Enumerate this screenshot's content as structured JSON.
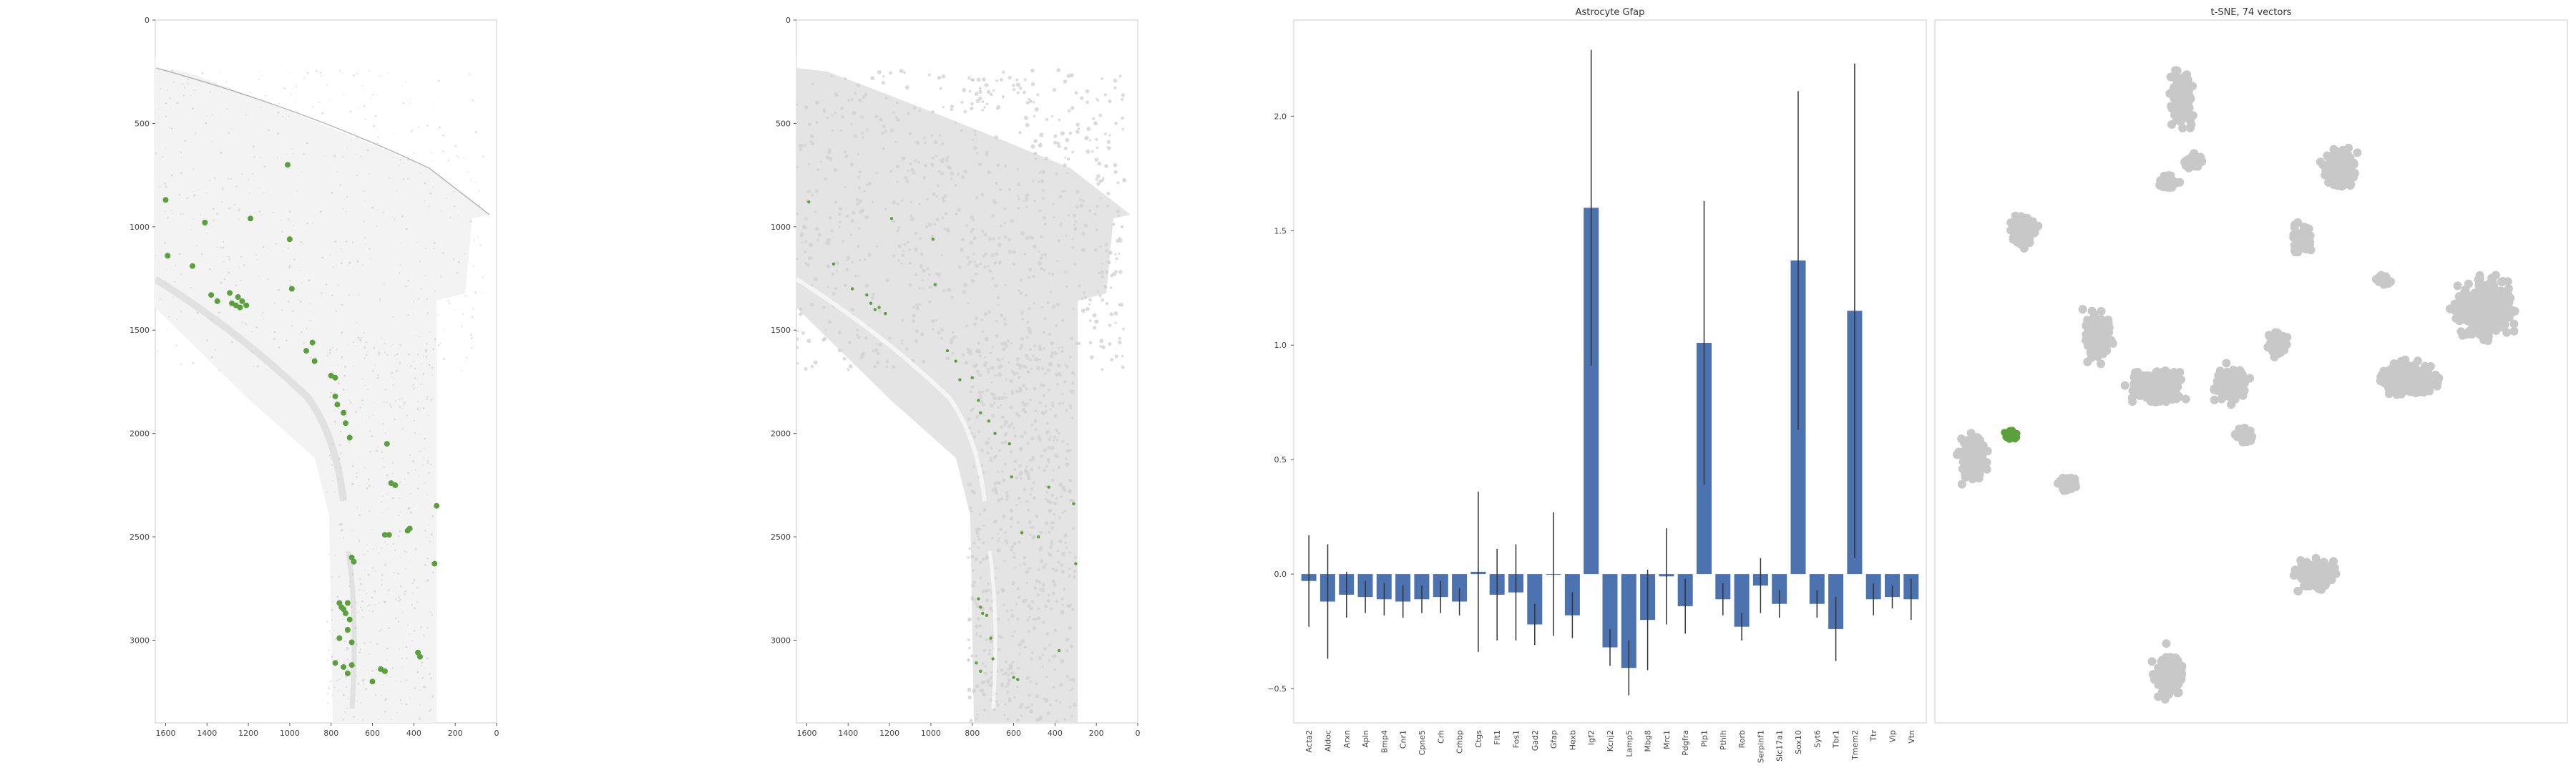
{
  "colors": {
    "bar": "#4c72b0",
    "highlight": "#5aa13d",
    "cloud": "#c8c8c8",
    "tissue": "#e2e2e2",
    "errorbar": "#333333",
    "axis": "#cccccc"
  },
  "chart_data": [
    {
      "type": "scatter",
      "title": "",
      "xlim": [
        1650,
        0
      ],
      "ylim": [
        3400,
        0
      ],
      "xticks": [
        1600,
        1400,
        1200,
        1000,
        800,
        600,
        400,
        200,
        0
      ],
      "yticks": [
        0,
        500,
        1000,
        1500,
        2000,
        2500,
        3000
      ],
      "background": "grayscale tissue image",
      "highlight_points": [
        [
          1600,
          870
        ],
        [
          1590,
          1140
        ],
        [
          1470,
          1190
        ],
        [
          1410,
          980
        ],
        [
          1380,
          1330
        ],
        [
          1350,
          1360
        ],
        [
          1290,
          1320
        ],
        [
          1280,
          1370
        ],
        [
          1260,
          1380
        ],
        [
          1250,
          1340
        ],
        [
          1240,
          1390
        ],
        [
          1230,
          1360
        ],
        [
          1210,
          1380
        ],
        [
          1190,
          960
        ],
        [
          1010,
          700
        ],
        [
          1000,
          1060
        ],
        [
          990,
          1300
        ],
        [
          920,
          1600
        ],
        [
          890,
          1560
        ],
        [
          880,
          1650
        ],
        [
          800,
          1720
        ],
        [
          780,
          1730
        ],
        [
          780,
          1820
        ],
        [
          770,
          1860
        ],
        [
          740,
          1900
        ],
        [
          730,
          1950
        ],
        [
          710,
          2020
        ],
        [
          530,
          2050
        ],
        [
          700,
          2600
        ],
        [
          690,
          2620
        ],
        [
          540,
          2490
        ],
        [
          520,
          2490
        ],
        [
          510,
          2240
        ],
        [
          490,
          2250
        ],
        [
          430,
          2470
        ],
        [
          420,
          2460
        ],
        [
          290,
          2350
        ],
        [
          300,
          2630
        ],
        [
          760,
          2820
        ],
        [
          750,
          2840
        ],
        [
          740,
          2850
        ],
        [
          730,
          2870
        ],
        [
          720,
          2820
        ],
        [
          710,
          2900
        ],
        [
          720,
          2950
        ],
        [
          760,
          2990
        ],
        [
          700,
          3010
        ],
        [
          780,
          3110
        ],
        [
          740,
          3130
        ],
        [
          720,
          3160
        ],
        [
          700,
          3120
        ],
        [
          600,
          3200
        ],
        [
          560,
          3140
        ],
        [
          540,
          3150
        ],
        [
          380,
          3060
        ],
        [
          370,
          3080
        ]
      ]
    },
    {
      "type": "scatter",
      "title": "",
      "xlim": [
        1650,
        0
      ],
      "ylim": [
        3400,
        0
      ],
      "xticks": [
        1600,
        1400,
        1200,
        1000,
        800,
        600,
        400,
        200,
        0
      ],
      "yticks": [
        0,
        500,
        1000,
        1500,
        2000,
        2500,
        3000
      ],
      "background": "segmented cell masks",
      "highlight_points": [
        [
          1590,
          880
        ],
        [
          1470,
          1180
        ],
        [
          1380,
          1300
        ],
        [
          1310,
          1330
        ],
        [
          1290,
          1370
        ],
        [
          1270,
          1400
        ],
        [
          1250,
          1390
        ],
        [
          1220,
          1420
        ],
        [
          1190,
          960
        ],
        [
          990,
          1060
        ],
        [
          980,
          1280
        ],
        [
          920,
          1600
        ],
        [
          880,
          1650
        ],
        [
          860,
          1740
        ],
        [
          800,
          1730
        ],
        [
          770,
          1840
        ],
        [
          760,
          1900
        ],
        [
          720,
          1940
        ],
        [
          690,
          2000
        ],
        [
          620,
          2050
        ],
        [
          610,
          2210
        ],
        [
          560,
          2480
        ],
        [
          480,
          2500
        ],
        [
          430,
          2260
        ],
        [
          310,
          2340
        ],
        [
          300,
          2630
        ],
        [
          770,
          2800
        ],
        [
          760,
          2840
        ],
        [
          750,
          2870
        ],
        [
          730,
          2880
        ],
        [
          710,
          2990
        ],
        [
          780,
          3110
        ],
        [
          760,
          3150
        ],
        [
          700,
          3090
        ],
        [
          600,
          3180
        ],
        [
          580,
          3190
        ],
        [
          380,
          3050
        ]
      ]
    },
    {
      "type": "bar",
      "title": "Astrocyte Gfap",
      "xlabel": "",
      "ylabel": "",
      "ylim": [
        -0.65,
        2.42
      ],
      "yticks": [
        -0.5,
        0.0,
        0.5,
        1.0,
        1.5,
        2.0
      ],
      "ytick_labels": [
        "−0.5",
        "0.0",
        "0.5",
        "1.0",
        "1.5",
        "2.0"
      ],
      "categories": [
        "Acta2",
        "Aldoc",
        "Arxn",
        "Apln",
        "Bmp4",
        "Cnr1",
        "Cpne5",
        "Crh",
        "Crhbp",
        "Ctgs",
        "Flt1",
        "Fos1",
        "Gad2",
        "Gfap",
        "Hexb",
        "Igf2",
        "Kcnj2",
        "Lamp5",
        "Mbg8",
        "Mrc1",
        "Pdgfra",
        "Plp1",
        "Pthlh",
        "Rorb",
        "Serpinf1",
        "Slc17a1",
        "Sox10",
        "Syt6",
        "Tbr1",
        "Tmem2",
        "Ttr",
        "Vip",
        "Vtn"
      ],
      "values": [
        -0.03,
        -0.12,
        -0.09,
        -0.1,
        -0.11,
        -0.12,
        -0.11,
        -0.1,
        -0.12,
        0.01,
        -0.09,
        -0.08,
        -0.22,
        0.0,
        -0.18,
        1.6,
        -0.32,
        -0.41,
        -0.2,
        -0.01,
        -0.14,
        1.01,
        -0.11,
        -0.23,
        -0.05,
        -0.13,
        1.37,
        -0.13,
        -0.24,
        1.15,
        -0.11,
        -0.1,
        -0.11
      ],
      "errors": [
        0.2,
        0.25,
        0.1,
        0.07,
        0.07,
        0.07,
        0.06,
        0.07,
        0.06,
        0.35,
        0.2,
        0.21,
        0.09,
        0.27,
        0.1,
        0.69,
        0.08,
        0.12,
        0.22,
        0.21,
        0.12,
        0.62,
        0.07,
        0.06,
        0.12,
        0.06,
        0.74,
        0.06,
        0.14,
        1.08,
        0.07,
        0.05,
        0.09
      ]
    },
    {
      "type": "scatter",
      "title": "t-SNE, 74 vectors",
      "xlim": [
        0,
        100
      ],
      "ylim": [
        0,
        100
      ],
      "axes": "none",
      "clusters": [
        {
          "cx": 39,
          "cy": 89,
          "rx": 2.7,
          "ry": 5.6,
          "n": 160
        },
        {
          "cx": 41,
          "cy": 80,
          "rx": 2.2,
          "ry": 1.5,
          "n": 70
        },
        {
          "cx": 37,
          "cy": 77,
          "rx": 2.4,
          "ry": 1.5,
          "n": 50
        },
        {
          "cx": 64,
          "cy": 79,
          "rx": 4.0,
          "ry": 4.5,
          "n": 180
        },
        {
          "cx": 14,
          "cy": 70,
          "rx": 3.2,
          "ry": 3.3,
          "n": 100
        },
        {
          "cx": 58,
          "cy": 69,
          "rx": 2.5,
          "ry": 3.0,
          "n": 80
        },
        {
          "cx": 71,
          "cy": 63,
          "rx": 1.8,
          "ry": 1.2,
          "n": 30
        },
        {
          "cx": 87,
          "cy": 59,
          "rx": 6.5,
          "ry": 6.0,
          "n": 420
        },
        {
          "cx": 75,
          "cy": 49,
          "rx": 6.5,
          "ry": 3.5,
          "n": 280
        },
        {
          "cx": 26,
          "cy": 55,
          "rx": 3.5,
          "ry": 5.0,
          "n": 150
        },
        {
          "cx": 35,
          "cy": 48,
          "rx": 6.5,
          "ry": 3.5,
          "n": 260
        },
        {
          "cx": 47,
          "cy": 48,
          "rx": 4.0,
          "ry": 3.5,
          "n": 150
        },
        {
          "cx": 54,
          "cy": 54,
          "rx": 2.5,
          "ry": 2.5,
          "n": 70
        },
        {
          "cx": 49,
          "cy": 41,
          "rx": 2.5,
          "ry": 1.8,
          "n": 50
        },
        {
          "cx": 6,
          "cy": 38,
          "rx": 3.2,
          "ry": 5.0,
          "n": 160
        },
        {
          "cx": 21,
          "cy": 34,
          "rx": 2.3,
          "ry": 1.6,
          "n": 50
        },
        {
          "cx": 60,
          "cy": 21,
          "rx": 4.5,
          "ry": 3.5,
          "n": 150
        },
        {
          "cx": 37,
          "cy": 7,
          "rx": 3.2,
          "ry": 5.0,
          "n": 150
        }
      ],
      "highlight": {
        "cx": 12,
        "cy": 41,
        "rx": 1.7,
        "ry": 1.3,
        "n": 45
      }
    }
  ]
}
